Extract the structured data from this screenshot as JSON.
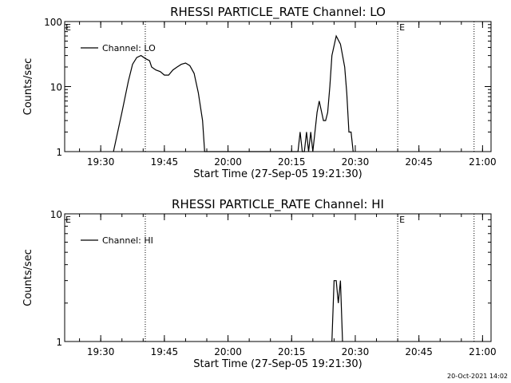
{
  "footer_text": "20-Oct-2021 14:02",
  "chart_data": [
    {
      "type": "line",
      "title": "RHESSI PARTICLE_RATE Channel: LO",
      "xlabel": "Start Time (27-Sep-05 19:21:30)",
      "ylabel": "Counts/sec",
      "yscale": "log",
      "ylim": [
        1,
        100
      ],
      "yticks": [
        {
          "v": 1,
          "label": "1"
        },
        {
          "v": 10,
          "label": "10"
        },
        {
          "v": 100,
          "label": "100"
        }
      ],
      "xlim": [
        "19:21:30",
        "21:02:00"
      ],
      "xticks": [
        "19:30",
        "19:45",
        "20:00",
        "20:15",
        "20:30",
        "20:45",
        "21:00"
      ],
      "legend": "top-left",
      "series": [
        {
          "name": "Channel: LO",
          "points": [
            [
              "19:33:00",
              1
            ],
            [
              "19:35:00",
              4
            ],
            [
              "19:36:30",
              12
            ],
            [
              "19:37:30",
              22
            ],
            [
              "19:38:30",
              28
            ],
            [
              "19:39:30",
              30
            ],
            [
              "19:40:30",
              27
            ],
            [
              "19:41:30",
              25
            ],
            [
              "19:42:00",
              20
            ],
            [
              "19:43:00",
              18
            ],
            [
              "19:44:00",
              17
            ],
            [
              "19:45:00",
              15
            ],
            [
              "19:46:00",
              15
            ],
            [
              "19:47:00",
              18
            ],
            [
              "19:48:00",
              20
            ],
            [
              "19:49:00",
              22
            ],
            [
              "19:50:00",
              23
            ],
            [
              "19:51:00",
              21
            ],
            [
              "19:52:00",
              16
            ],
            [
              "19:53:00",
              8
            ],
            [
              "19:54:00",
              3
            ],
            [
              "19:54:30",
              1
            ],
            [
              "20:16:30",
              1
            ],
            [
              "20:17:00",
              2
            ],
            [
              "20:17:30",
              1
            ],
            [
              "20:18:00",
              1
            ],
            [
              "20:18:30",
              2
            ],
            [
              "20:19:00",
              1
            ],
            [
              "20:19:30",
              2
            ],
            [
              "20:20:00",
              1
            ],
            [
              "20:21:00",
              4
            ],
            [
              "20:21:30",
              6
            ],
            [
              "20:22:30",
              3
            ],
            [
              "20:23:00",
              3
            ],
            [
              "20:23:30",
              4
            ],
            [
              "20:24:00",
              10
            ],
            [
              "20:24:30",
              30
            ],
            [
              "20:25:30",
              60
            ],
            [
              "20:26:30",
              45
            ],
            [
              "20:27:30",
              20
            ],
            [
              "20:28:00",
              8
            ],
            [
              "20:28:30",
              2
            ],
            [
              "20:29:00",
              2
            ],
            [
              "20:29:30",
              1
            ]
          ]
        }
      ],
      "markers": [
        {
          "time": "19:40:30",
          "label": ""
        },
        {
          "time": "20:40:00",
          "label": "E"
        },
        {
          "time": "20:58:00",
          "label": ""
        }
      ],
      "corner_label": "E"
    },
    {
      "type": "line",
      "title": "RHESSI PARTICLE_RATE Channel: HI",
      "xlabel": "Start Time (27-Sep-05 19:21:30)",
      "ylabel": "Counts/sec",
      "yscale": "log",
      "ylim": [
        1,
        10
      ],
      "yticks": [
        {
          "v": 1,
          "label": "1"
        },
        {
          "v": 10,
          "label": "10"
        }
      ],
      "xlim": [
        "19:21:30",
        "21:02:00"
      ],
      "xticks": [
        "19:30",
        "19:45",
        "20:00",
        "20:15",
        "20:30",
        "20:45",
        "21:00"
      ],
      "legend": "top-left",
      "series": [
        {
          "name": "Channel: HI",
          "points": [
            [
              "20:24:30",
              1
            ],
            [
              "20:25:00",
              3
            ],
            [
              "20:25:30",
              3
            ],
            [
              "20:26:00",
              2
            ],
            [
              "20:26:30",
              3
            ],
            [
              "20:27:00",
              1
            ]
          ]
        }
      ],
      "markers": [
        {
          "time": "19:40:30",
          "label": ""
        },
        {
          "time": "20:40:00",
          "label": "E"
        },
        {
          "time": "20:58:00",
          "label": ""
        }
      ],
      "corner_label": "E"
    }
  ]
}
